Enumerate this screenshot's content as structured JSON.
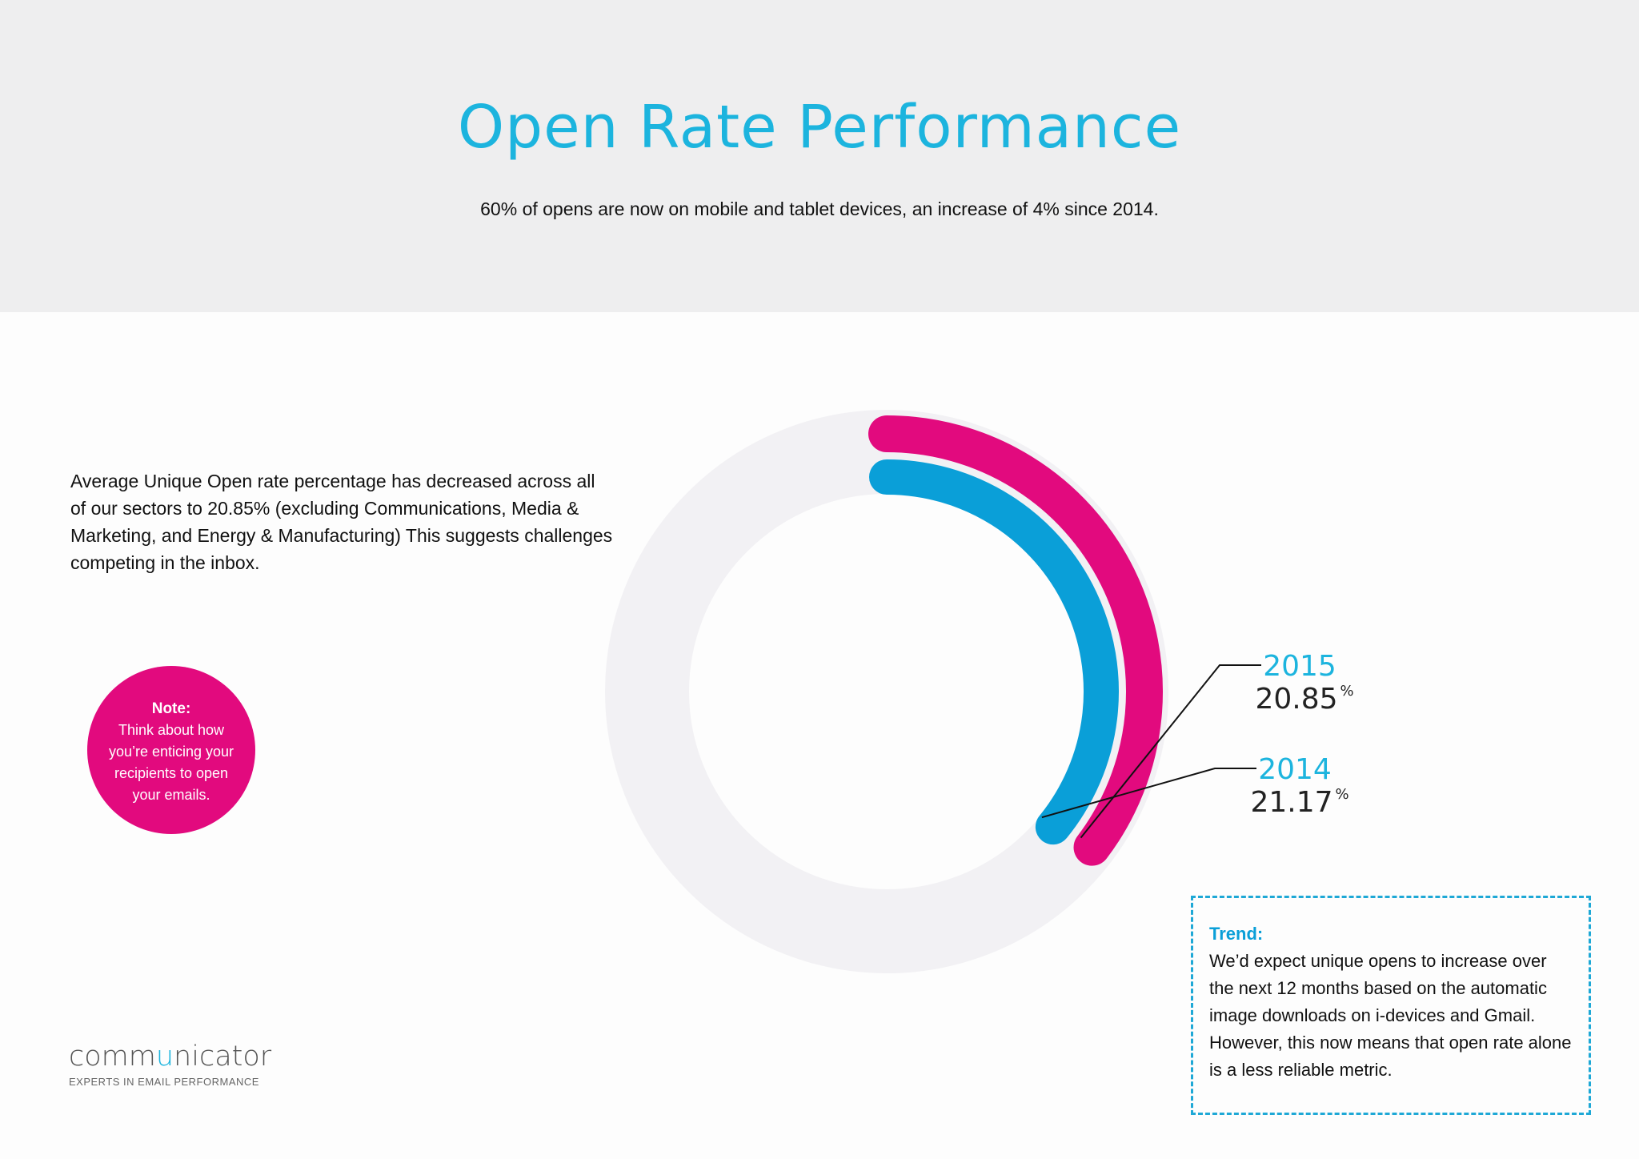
{
  "header": {
    "title": "Open Rate Performance",
    "subtitle": "60% of opens are now on mobile and tablet devices, an increase of 4% since 2014."
  },
  "intro": "Average Unique Open rate percentage has decreased across all of our sectors to 20.85% (excluding Communications, Media & Marketing, and Energy & Manufacturing) This suggests challenges competing in the inbox.",
  "note": {
    "title": "Note:",
    "body": "Think about how you’re enticing your recipients to open your emails."
  },
  "trend": {
    "title": "Trend:",
    "body": "We’d expect unique opens to increase over the next 12 months based on the automatic image downloads on i-devices and Gmail. However, this now means that open rate alone is a less reliable metric."
  },
  "logo": {
    "wordmark_pre": "comm",
    "wordmark_accent": "u",
    "wordmark_post": "nicator",
    "tagline": "EXPERTS IN EMAIL PERFORMANCE"
  },
  "colors": {
    "series_2015": "#e20a7e",
    "series_2014": "#0a9fd8",
    "label_year": "#1cb4de",
    "track": "#f2f1f4"
  },
  "chart_data": {
    "type": "radial-bar",
    "series": [
      {
        "name": "2015",
        "value": 20.85,
        "unit": "%",
        "color": "#e20a7e"
      },
      {
        "name": "2014",
        "value": 21.17,
        "unit": "%",
        "color": "#0a9fd8"
      }
    ],
    "unit_label": "%",
    "max": 100
  }
}
